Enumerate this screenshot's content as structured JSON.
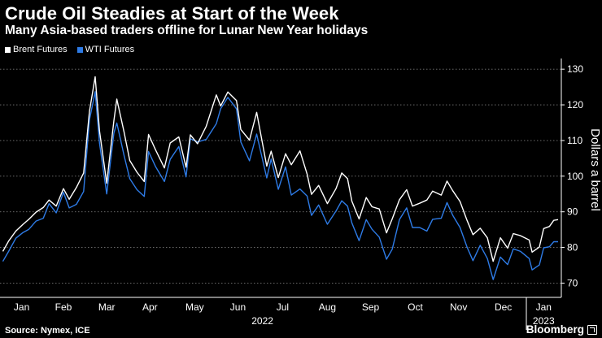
{
  "header": {
    "title": "Crude Oil Steadies at Start of the Week",
    "subtitle": "Many Asia-based traders offline for Lunar New Year holidays"
  },
  "footer": {
    "source": "Source: Nymex, ICE",
    "brand": "Bloomberg"
  },
  "colors": {
    "background": "#000000",
    "brent": "#ffffff",
    "wti": "#2e7be6",
    "grid": "#777777",
    "text": "#ffffff"
  },
  "chart_data": {
    "type": "line",
    "title": "Crude Oil Steadies at Start of the Week",
    "subtitle": "Many Asia-based traders offline for Lunar New Year holidays",
    "ylabel": "Dollars a barrel",
    "yaxis_position": "right",
    "ylim": [
      66,
      133
    ],
    "yticks": [
      70,
      80,
      90,
      100,
      110,
      120,
      130
    ],
    "grid": "horizontal dotted",
    "legend": "top-left",
    "xlim": [
      "2022-01-01",
      "2023-01-23"
    ],
    "xticks": [
      {
        "label": "Jan",
        "date": "2022-01-16"
      },
      {
        "label": "Feb",
        "date": "2022-02-14"
      },
      {
        "label": "Mar",
        "date": "2022-03-16"
      },
      {
        "label": "Apr",
        "date": "2022-04-15"
      },
      {
        "label": "May",
        "date": "2022-05-16"
      },
      {
        "label": "Jun",
        "date": "2022-06-15"
      },
      {
        "label": "Jul",
        "date": "2022-07-16"
      },
      {
        "label": "Aug",
        "date": "2022-08-16"
      },
      {
        "label": "Sep",
        "date": "2022-09-15"
      },
      {
        "label": "Oct",
        "date": "2022-10-16"
      },
      {
        "label": "Nov",
        "date": "2022-11-15"
      },
      {
        "label": "Dec",
        "date": "2022-12-16"
      },
      {
        "label": "Jan",
        "date": "2023-01-13"
      }
    ],
    "year_labels": [
      {
        "label": "2022",
        "date": "2022-07-02"
      },
      {
        "label": "2023",
        "date": "2023-01-13"
      }
    ],
    "year_divider": "2023-01-01",
    "series": [
      {
        "name": "Brent Futures",
        "color": "#ffffff",
        "points": [
          [
            "2022-01-03",
            78.9
          ],
          [
            "2022-01-07",
            81.8
          ],
          [
            "2022-01-12",
            84.6
          ],
          [
            "2022-01-17",
            86.5
          ],
          [
            "2022-01-21",
            87.9
          ],
          [
            "2022-01-26",
            89.9
          ],
          [
            "2022-01-31",
            91.2
          ],
          [
            "2022-02-04",
            93.3
          ],
          [
            "2022-02-09",
            91.6
          ],
          [
            "2022-02-14",
            96.5
          ],
          [
            "2022-02-18",
            93.5
          ],
          [
            "2022-02-23",
            96.8
          ],
          [
            "2022-02-28",
            100.9
          ],
          [
            "2022-03-04",
            118.1
          ],
          [
            "2022-03-08",
            127.9
          ],
          [
            "2022-03-11",
            112.7
          ],
          [
            "2022-03-16",
            98.0
          ],
          [
            "2022-03-21",
            115.6
          ],
          [
            "2022-03-23",
            121.6
          ],
          [
            "2022-03-28",
            112.5
          ],
          [
            "2022-04-01",
            104.4
          ],
          [
            "2022-04-06",
            101.1
          ],
          [
            "2022-04-11",
            98.5
          ],
          [
            "2022-04-14",
            111.7
          ],
          [
            "2022-04-19",
            107.3
          ],
          [
            "2022-04-25",
            102.3
          ],
          [
            "2022-04-29",
            109.3
          ],
          [
            "2022-05-05",
            111.0
          ],
          [
            "2022-05-10",
            102.5
          ],
          [
            "2022-05-13",
            111.6
          ],
          [
            "2022-05-18",
            109.1
          ],
          [
            "2022-05-24",
            114.0
          ],
          [
            "2022-05-31",
            122.8
          ],
          [
            "2022-06-03",
            119.7
          ],
          [
            "2022-06-08",
            123.6
          ],
          [
            "2022-06-14",
            121.2
          ],
          [
            "2022-06-17",
            113.1
          ],
          [
            "2022-06-23",
            110.1
          ],
          [
            "2022-06-28",
            117.9
          ],
          [
            "2022-07-05",
            102.8
          ],
          [
            "2022-07-08",
            107.0
          ],
          [
            "2022-07-13",
            99.6
          ],
          [
            "2022-07-18",
            106.3
          ],
          [
            "2022-07-22",
            103.2
          ],
          [
            "2022-07-28",
            107.1
          ],
          [
            "2022-08-02",
            100.5
          ],
          [
            "2022-08-05",
            94.9
          ],
          [
            "2022-08-10",
            97.4
          ],
          [
            "2022-08-16",
            92.3
          ],
          [
            "2022-08-22",
            96.5
          ],
          [
            "2022-08-26",
            100.9
          ],
          [
            "2022-08-30",
            99.3
          ],
          [
            "2022-09-02",
            93.0
          ],
          [
            "2022-09-07",
            88.0
          ],
          [
            "2022-09-12",
            94.0
          ],
          [
            "2022-09-16",
            91.4
          ],
          [
            "2022-09-21",
            90.8
          ],
          [
            "2022-09-26",
            84.1
          ],
          [
            "2022-09-30",
            88.0
          ],
          [
            "2022-10-05",
            93.4
          ],
          [
            "2022-10-10",
            96.2
          ],
          [
            "2022-10-14",
            91.6
          ],
          [
            "2022-10-19",
            92.4
          ],
          [
            "2022-10-24",
            93.3
          ],
          [
            "2022-10-28",
            95.8
          ],
          [
            "2022-11-03",
            94.7
          ],
          [
            "2022-11-07",
            98.6
          ],
          [
            "2022-11-11",
            95.9
          ],
          [
            "2022-11-16",
            92.9
          ],
          [
            "2022-11-21",
            87.5
          ],
          [
            "2022-11-25",
            83.6
          ],
          [
            "2022-11-30",
            85.4
          ],
          [
            "2022-12-05",
            82.7
          ],
          [
            "2022-12-09",
            76.1
          ],
          [
            "2022-12-14",
            82.7
          ],
          [
            "2022-12-19",
            79.8
          ],
          [
            "2022-12-23",
            83.9
          ],
          [
            "2022-12-28",
            83.3
          ],
          [
            "2023-01-03",
            82.1
          ],
          [
            "2023-01-05",
            78.7
          ],
          [
            "2023-01-10",
            80.1
          ],
          [
            "2023-01-13",
            85.3
          ],
          [
            "2023-01-17",
            85.9
          ],
          [
            "2023-01-20",
            87.6
          ],
          [
            "2023-01-23",
            87.8
          ]
        ]
      },
      {
        "name": "WTI Futures",
        "color": "#2e7be6",
        "points": [
          [
            "2022-01-03",
            76.1
          ],
          [
            "2022-01-07",
            78.9
          ],
          [
            "2022-01-12",
            82.6
          ],
          [
            "2022-01-17",
            84.2
          ],
          [
            "2022-01-21",
            85.1
          ],
          [
            "2022-01-26",
            87.4
          ],
          [
            "2022-01-31",
            88.2
          ],
          [
            "2022-02-04",
            92.3
          ],
          [
            "2022-02-09",
            89.7
          ],
          [
            "2022-02-14",
            95.5
          ],
          [
            "2022-02-18",
            91.1
          ],
          [
            "2022-02-23",
            92.1
          ],
          [
            "2022-02-28",
            95.7
          ],
          [
            "2022-03-04",
            115.7
          ],
          [
            "2022-03-08",
            123.7
          ],
          [
            "2022-03-11",
            109.3
          ],
          [
            "2022-03-16",
            95.0
          ],
          [
            "2022-03-21",
            112.1
          ],
          [
            "2022-03-23",
            114.9
          ],
          [
            "2022-03-28",
            105.9
          ],
          [
            "2022-04-01",
            99.3
          ],
          [
            "2022-04-06",
            96.2
          ],
          [
            "2022-04-11",
            94.3
          ],
          [
            "2022-04-14",
            106.9
          ],
          [
            "2022-04-19",
            102.6
          ],
          [
            "2022-04-25",
            98.5
          ],
          [
            "2022-04-29",
            104.7
          ],
          [
            "2022-05-05",
            108.3
          ],
          [
            "2022-05-10",
            99.8
          ],
          [
            "2022-05-13",
            110.5
          ],
          [
            "2022-05-18",
            109.6
          ],
          [
            "2022-05-24",
            110.3
          ],
          [
            "2022-05-31",
            114.7
          ],
          [
            "2022-06-03",
            118.9
          ],
          [
            "2022-06-08",
            122.1
          ],
          [
            "2022-06-14",
            118.9
          ],
          [
            "2022-06-17",
            109.6
          ],
          [
            "2022-06-23",
            104.3
          ],
          [
            "2022-06-28",
            111.8
          ],
          [
            "2022-07-05",
            99.5
          ],
          [
            "2022-07-08",
            104.8
          ],
          [
            "2022-07-13",
            96.3
          ],
          [
            "2022-07-18",
            102.6
          ],
          [
            "2022-07-22",
            94.7
          ],
          [
            "2022-07-28",
            96.4
          ],
          [
            "2022-08-02",
            94.4
          ],
          [
            "2022-08-05",
            89.0
          ],
          [
            "2022-08-10",
            91.9
          ],
          [
            "2022-08-16",
            86.5
          ],
          [
            "2022-08-22",
            90.2
          ],
          [
            "2022-08-26",
            93.1
          ],
          [
            "2022-08-30",
            91.6
          ],
          [
            "2022-09-02",
            86.9
          ],
          [
            "2022-09-07",
            81.9
          ],
          [
            "2022-09-12",
            87.8
          ],
          [
            "2022-09-16",
            85.1
          ],
          [
            "2022-09-21",
            82.9
          ],
          [
            "2022-09-26",
            76.7
          ],
          [
            "2022-09-30",
            79.5
          ],
          [
            "2022-10-05",
            87.8
          ],
          [
            "2022-10-10",
            91.1
          ],
          [
            "2022-10-14",
            85.6
          ],
          [
            "2022-10-19",
            85.6
          ],
          [
            "2022-10-24",
            84.6
          ],
          [
            "2022-10-28",
            87.9
          ],
          [
            "2022-11-03",
            88.2
          ],
          [
            "2022-11-07",
            92.6
          ],
          [
            "2022-11-11",
            89.0
          ],
          [
            "2022-11-16",
            85.6
          ],
          [
            "2022-11-21",
            80.0
          ],
          [
            "2022-11-25",
            76.3
          ],
          [
            "2022-11-30",
            80.6
          ],
          [
            "2022-12-05",
            76.9
          ],
          [
            "2022-12-09",
            71.0
          ],
          [
            "2022-12-14",
            77.3
          ],
          [
            "2022-12-19",
            75.2
          ],
          [
            "2022-12-23",
            79.6
          ],
          [
            "2022-12-28",
            78.9
          ],
          [
            "2023-01-03",
            76.9
          ],
          [
            "2023-01-05",
            73.7
          ],
          [
            "2023-01-10",
            75.1
          ],
          [
            "2023-01-13",
            79.9
          ],
          [
            "2023-01-17",
            80.2
          ],
          [
            "2023-01-20",
            81.6
          ],
          [
            "2023-01-23",
            81.6
          ]
        ]
      }
    ]
  }
}
